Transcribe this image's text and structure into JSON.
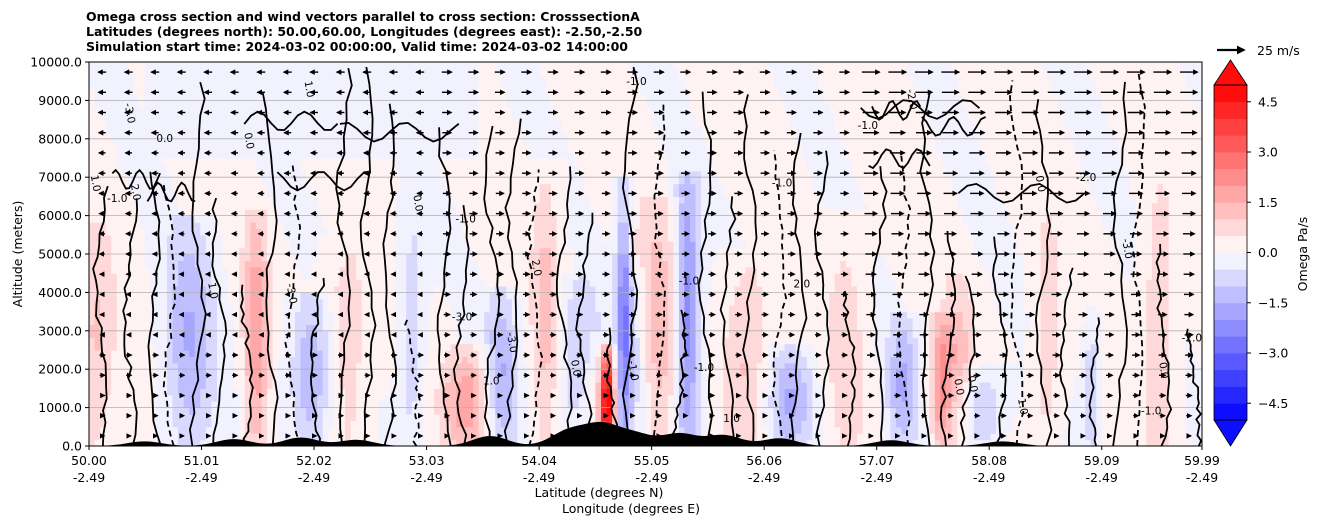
{
  "chart_data": {
    "type": "heatmap",
    "title_lines": [
      "Omega cross section and wind vectors parallel to cross section: CrosssectionA",
      "Latitudes (degrees north): 50.00,60.00, Longitudes (degrees east): -2.50,-2.50",
      "Simulation start time: 2024-03-02 00:00:00, Valid time: 2024-03-02 14:00:00"
    ],
    "xlabel_1": "Latitude (degrees N)",
    "xlabel_2": "Longitude (degrees E)",
    "ylabel": "Altitude (meters)",
    "x_ticks": [
      {
        "lat": "50.00",
        "lon": "-2.49"
      },
      {
        "lat": "51.01",
        "lon": "-2.49"
      },
      {
        "lat": "52.02",
        "lon": "-2.49"
      },
      {
        "lat": "53.03",
        "lon": "-2.49"
      },
      {
        "lat": "54.04",
        "lon": "-2.49"
      },
      {
        "lat": "55.05",
        "lon": "-2.49"
      },
      {
        "lat": "56.06",
        "lon": "-2.49"
      },
      {
        "lat": "57.07",
        "lon": "-2.49"
      },
      {
        "lat": "58.08",
        "lon": "-2.49"
      },
      {
        "lat": "59.09",
        "lon": "-2.49"
      },
      {
        "lat": "59.99",
        "lon": "-2.49"
      }
    ],
    "x_range": [
      50.0,
      59.99
    ],
    "y_ticks": [
      "0.0",
      "1000.0",
      "2000.0",
      "3000.0",
      "4000.0",
      "5000.0",
      "6000.0",
      "7000.0",
      "8000.0",
      "9000.0",
      "10000.0"
    ],
    "y_range": [
      0,
      10000
    ],
    "grid": "horizontal",
    "colorbar": {
      "label": "Omega Pa/s",
      "ticks": [
        "4.5",
        "3.0",
        "1.5",
        "0.0",
        "−1.5",
        "−3.0",
        "−4.5"
      ],
      "range": [
        -5.0,
        5.0
      ],
      "levels": 20,
      "cmap": "bwr",
      "color_min": "#0000ff",
      "color_mid": "#ffffff",
      "color_max": "#ff0000"
    },
    "quiver_key": "25 m/s",
    "contour_labels": [
      "0.0",
      "1.0",
      "-1.0",
      "2.0",
      "-2.0",
      "-3.0"
    ],
    "terrain_color": "#000000"
  }
}
